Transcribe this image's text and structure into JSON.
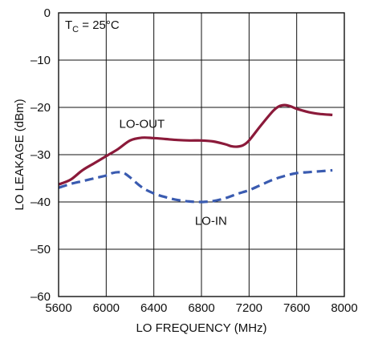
{
  "chart_data": {
    "type": "line",
    "xlabel": "LO FREQUENCY (MHz)",
    "ylabel": "LO LEAKAGE (dBm)",
    "xlim": [
      5600,
      8000
    ],
    "ylim": [
      -60,
      0
    ],
    "xticks": [
      5600,
      6000,
      6400,
      6800,
      7200,
      7600,
      8000
    ],
    "yticks": [
      0,
      -10,
      -20,
      -30,
      -40,
      -50,
      -60
    ],
    "xtick_labels": [
      "5600",
      "6000",
      "6400",
      "6800",
      "7200",
      "7600",
      "8000"
    ],
    "ytick_labels": [
      "0",
      "–10",
      "–20",
      "–30",
      "–40",
      "–50",
      "–60"
    ],
    "grid": true,
    "condition": {
      "prefix": "T",
      "sub": "C",
      "suffix": " = 25°C"
    },
    "series": [
      {
        "name": "LO-OUT",
        "color": "#8b1a3a",
        "style": "solid",
        "x": [
          5600,
          5700,
          5800,
          5900,
          6000,
          6100,
          6200,
          6300,
          6400,
          6500,
          6600,
          6700,
          6800,
          6900,
          7000,
          7050,
          7100,
          7150,
          7200,
          7300,
          7400,
          7450,
          7500,
          7550,
          7600,
          7700,
          7800,
          7900
        ],
        "y": [
          -36.3,
          -35.3,
          -33.3,
          -31.8,
          -30.3,
          -28.8,
          -27.0,
          -26.4,
          -26.5,
          -26.7,
          -26.9,
          -27.0,
          -27.0,
          -27.2,
          -27.8,
          -28.2,
          -28.3,
          -28.0,
          -27.0,
          -23.8,
          -20.8,
          -19.8,
          -19.5,
          -19.8,
          -20.3,
          -21.0,
          -21.4,
          -21.6
        ]
      },
      {
        "name": "LO-IN",
        "color": "#3a5bb0",
        "style": "dashed",
        "x": [
          5600,
          5700,
          5800,
          5900,
          6000,
          6050,
          6100,
          6150,
          6200,
          6300,
          6400,
          6500,
          6600,
          6700,
          6800,
          6900,
          7000,
          7100,
          7200,
          7300,
          7400,
          7500,
          7600,
          7700,
          7800,
          7900
        ],
        "y": [
          -37.0,
          -36.2,
          -35.6,
          -35.0,
          -34.4,
          -33.9,
          -33.7,
          -33.9,
          -34.8,
          -36.9,
          -38.2,
          -39.0,
          -39.6,
          -39.9,
          -40.0,
          -39.8,
          -39.2,
          -38.3,
          -37.5,
          -36.4,
          -35.3,
          -34.5,
          -33.9,
          -33.7,
          -33.5,
          -33.3
        ]
      }
    ],
    "annotations": [
      {
        "text": "LO-OUT",
        "x": 6300,
        "y": -24.3
      },
      {
        "text": "LO-IN",
        "x": 6880,
        "y": -44.8
      }
    ]
  }
}
